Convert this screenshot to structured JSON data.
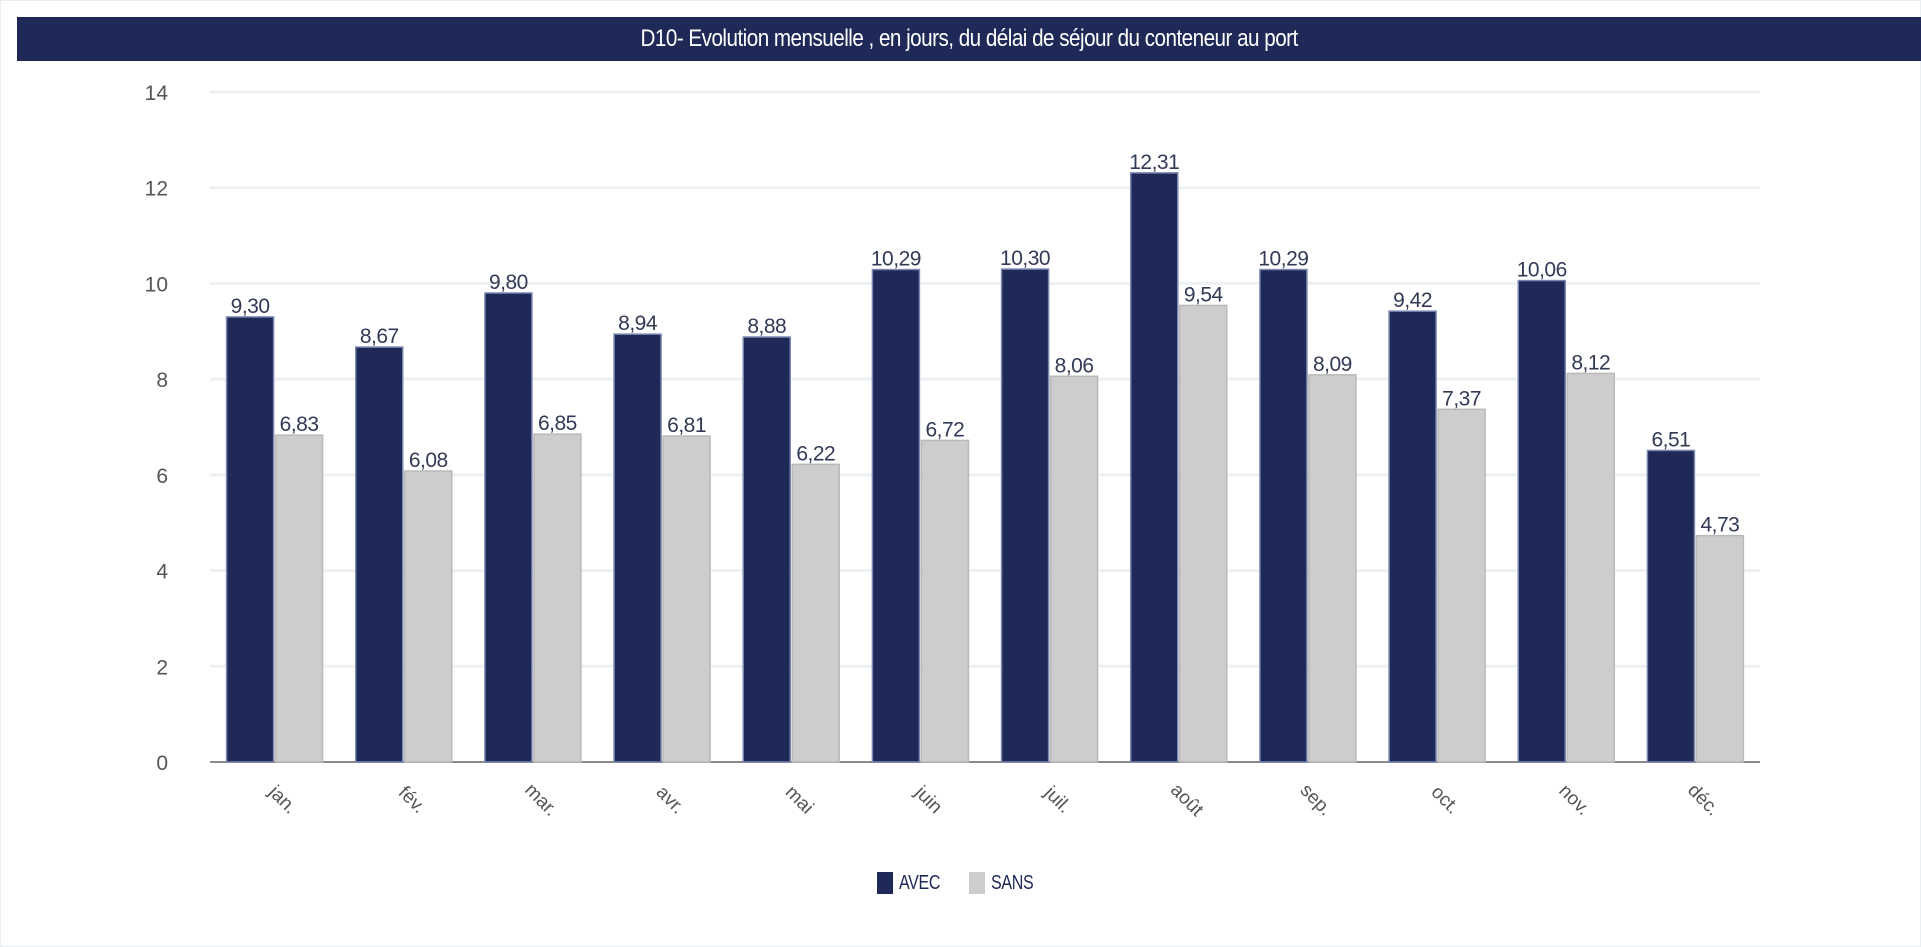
{
  "chart_data": {
    "type": "bar",
    "title": "D10- Evolution mensuelle , en jours, du délai de séjour du conteneur au port",
    "categories": [
      "jan.",
      "fév.",
      "mar.",
      "avr.",
      "mai",
      "juin",
      "juil.",
      "août",
      "sep.",
      "oct.",
      "nov.",
      "déc."
    ],
    "series": [
      {
        "name": "AVEC",
        "color": "#1f2957",
        "values": [
          9.3,
          8.67,
          9.8,
          8.94,
          8.88,
          10.29,
          10.3,
          12.31,
          10.29,
          9.42,
          10.06,
          6.51
        ],
        "labels": [
          "9,30",
          "8,67",
          "9,80",
          "8,94",
          "8,88",
          "10,29",
          "10,30",
          "12,31",
          "10,29",
          "9,42",
          "10,06",
          "6,51"
        ]
      },
      {
        "name": "SANS",
        "color": "#cdcdcd",
        "values": [
          6.83,
          6.08,
          6.85,
          6.81,
          6.22,
          6.72,
          8.06,
          9.54,
          8.09,
          7.37,
          8.12,
          4.73
        ],
        "labels": [
          "6,83",
          "6,08",
          "6,85",
          "6,81",
          "6,22",
          "6,72",
          "8,06",
          "9,54",
          "8,09",
          "7,37",
          "8,12",
          "4,73"
        ]
      }
    ],
    "yticks": [
      "0",
      "2",
      "4",
      "6",
      "8",
      "10",
      "12",
      "14"
    ],
    "ylim": [
      0,
      14
    ],
    "xlabel": "",
    "ylabel": "",
    "grid": true,
    "legend_position": "bottom"
  }
}
